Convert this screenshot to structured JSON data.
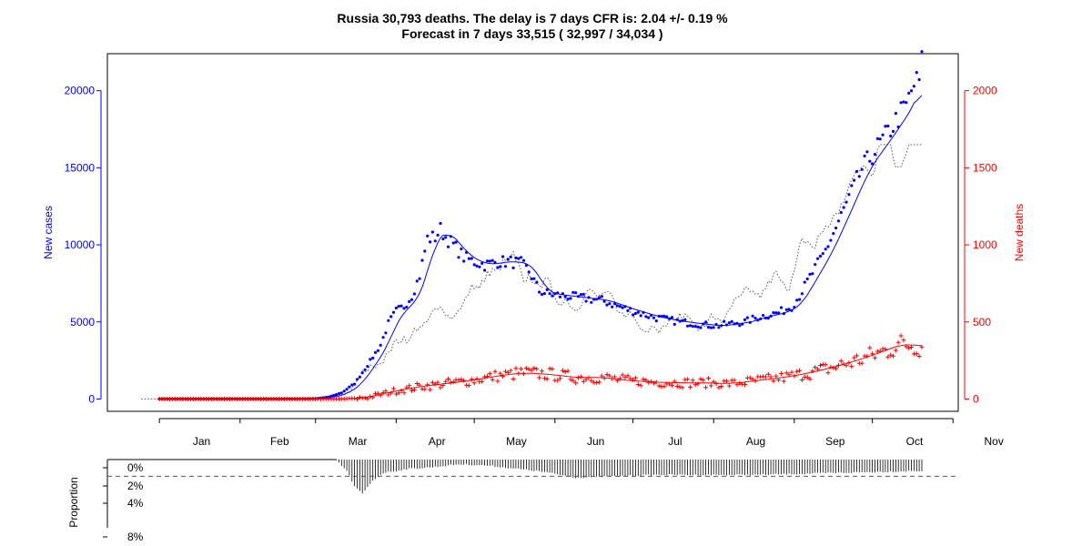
{
  "chart_data": {
    "type": "scatter",
    "title": "Russia 30,793 deaths. The delay is 7 days CFR is: 2.04 +/- 0.19 %",
    "subtitle": "Forecast in 7 days 33,515 ( 32,997 / 34,034 )",
    "ylabel_left": "New cases",
    "ylabel_right": "New deaths",
    "month_labels": [
      "Jan",
      "Feb",
      "Mar",
      "Apr",
      "May",
      "Jun",
      "Jul",
      "Aug",
      "Sep",
      "Oct",
      "Nov"
    ],
    "y_left_ticks": [
      "0",
      "5000",
      "10000",
      "15000",
      "20000"
    ],
    "y_right_ticks": [
      "0",
      "500",
      "1000",
      "1500",
      "2000"
    ],
    "ylim_left": [
      -800,
      22400
    ],
    "ylim_right": [
      -80,
      2240
    ],
    "x_day_range": [
      -20,
      307
    ],
    "new_cases_anchors": [
      [
        0,
        0
      ],
      [
        50,
        0
      ],
      [
        60,
        20
      ],
      [
        65,
        130
      ],
      [
        70,
        400
      ],
      [
        75,
        1000
      ],
      [
        80,
        2200
      ],
      [
        85,
        3500
      ],
      [
        88,
        4900
      ],
      [
        91,
        5700
      ],
      [
        94,
        6000
      ],
      [
        97,
        6700
      ],
      [
        100,
        8000
      ],
      [
        103,
        10400
      ],
      [
        106,
        10500
      ],
      [
        108,
        11000
      ],
      [
        110,
        10500
      ],
      [
        113,
        10000
      ],
      [
        117,
        9200
      ],
      [
        121,
        8900
      ],
      [
        125,
        8700
      ],
      [
        130,
        8900
      ],
      [
        135,
        8900
      ],
      [
        139,
        8800
      ],
      [
        142,
        8300
      ],
      [
        146,
        7000
      ],
      [
        150,
        6800
      ],
      [
        160,
        6600
      ],
      [
        170,
        6400
      ],
      [
        180,
        5800
      ],
      [
        190,
        5300
      ],
      [
        200,
        5000
      ],
      [
        210,
        4800
      ],
      [
        215,
        4750
      ],
      [
        220,
        4900
      ],
      [
        225,
        5000
      ],
      [
        230,
        5300
      ],
      [
        238,
        5600
      ],
      [
        243,
        6000
      ],
      [
        246,
        6700
      ],
      [
        250,
        7900
      ],
      [
        255,
        9300
      ],
      [
        260,
        11100
      ],
      [
        265,
        13000
      ],
      [
        270,
        14900
      ],
      [
        275,
        16100
      ],
      [
        279,
        17000
      ],
      [
        284,
        18300
      ],
      [
        287,
        19000
      ],
      [
        290,
        20400
      ],
      [
        292,
        20600
      ],
      [
        293,
        21800
      ]
    ],
    "new_deaths_anchors": [
      [
        0,
        0
      ],
      [
        70,
        0
      ],
      [
        80,
        10
      ],
      [
        90,
        50
      ],
      [
        100,
        80
      ],
      [
        110,
        100
      ],
      [
        120,
        120
      ],
      [
        130,
        150
      ],
      [
        140,
        170
      ],
      [
        150,
        160
      ],
      [
        160,
        140
      ],
      [
        170,
        140
      ],
      [
        180,
        120
      ],
      [
        190,
        110
      ],
      [
        200,
        105
      ],
      [
        210,
        105
      ],
      [
        220,
        100
      ],
      [
        230,
        120
      ],
      [
        240,
        140
      ],
      [
        250,
        170
      ],
      [
        260,
        210
      ],
      [
        270,
        260
      ],
      [
        280,
        320
      ],
      [
        286,
        360
      ],
      [
        293,
        340
      ]
    ],
    "cfr_proportion_ticks": [
      "0%",
      "2%",
      "4%",
      "8%"
    ],
    "cfr_proportion_label": "Proportion",
    "cfr_reference_percent": 2.04,
    "series": [
      {
        "name": "New cases",
        "color": "#0000ff",
        "style": "points + smoothed line",
        "axis": "left"
      },
      {
        "name": "New deaths",
        "color": "#ff0000",
        "style": "plus markers + smoothed line",
        "axis": "right"
      },
      {
        "name": "",
        "color": "#555555",
        "style": "dotted line (deaths scaled by CFR, shifted by delay)",
        "axis": "left"
      }
    ]
  }
}
